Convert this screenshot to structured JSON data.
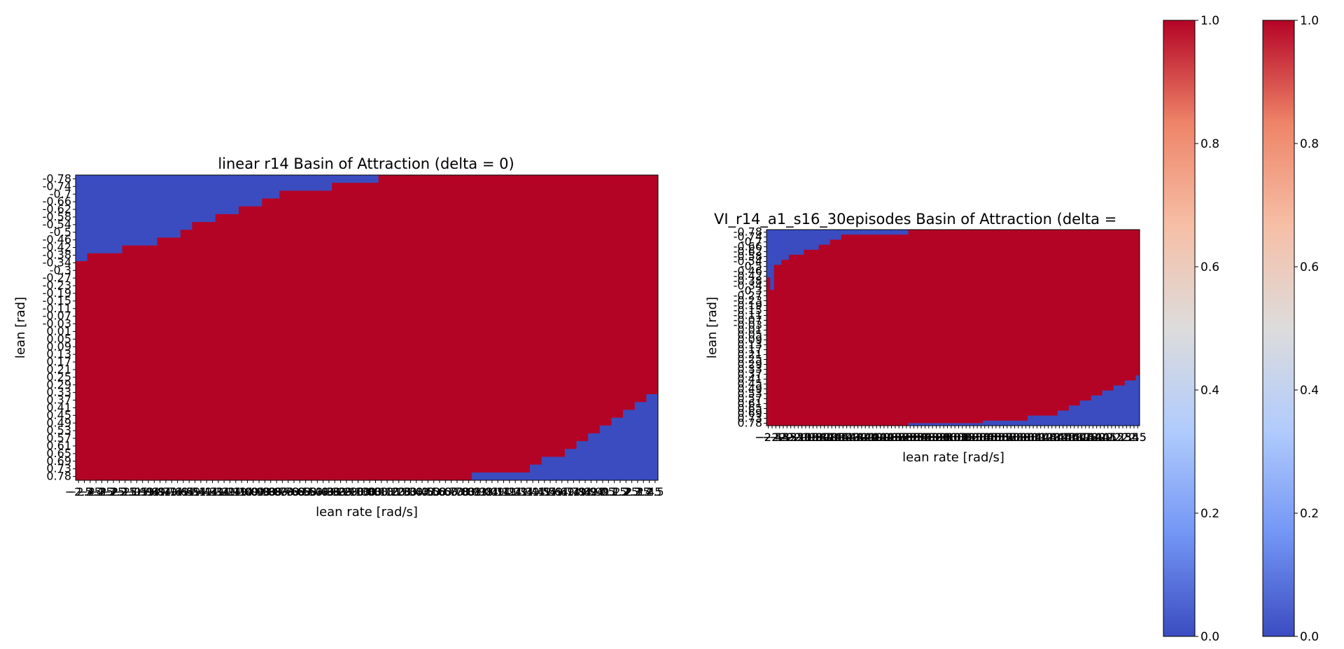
{
  "colors": {
    "stable": "#b40426",
    "unstable": "#3b4cc0"
  },
  "colormap": {
    "name": "coolwarm",
    "stops": [
      "#3b4cc0",
      "#7396f5",
      "#b0cbfc",
      "#dddcdc",
      "#f6bfa6",
      "#ee8468",
      "#b40426"
    ]
  },
  "chart_data": [
    {
      "type": "heatmap",
      "title": "linear r14 Basin of Attraction (delta = 0)",
      "xlabel": "lean rate [rad/s]",
      "ylabel": "lean [rad]",
      "xlim": [
        -2.5,
        2.5
      ],
      "ylim": [
        -0.78,
        0.78
      ],
      "y_ticks": [
        "-0.78",
        "-0.74",
        "-0.7",
        "-0.66",
        "-0.62",
        "-0.58",
        "-0.54",
        "-0.5",
        "-0.46",
        "-0.42",
        "-0.38",
        "-0.34",
        "-0.3",
        "-0.27",
        "-0.23",
        "-0.19",
        "-0.15",
        "-0.11",
        "-0.07",
        "-0.03",
        "0.01",
        "0.05",
        "0.09",
        "0.13",
        "0.17",
        "0.21",
        "0.25",
        "0.29",
        "0.33",
        "0.37",
        "0.41",
        "0.45",
        "0.49",
        "0.53",
        "0.57",
        "0.61",
        "0.65",
        "0.69",
        "0.73",
        "0.78"
      ],
      "x_tick_count": 100,
      "values_note": "1 = stabilized, 0 = not stabilized",
      "top_boundary": [
        [
          -2.5,
          -0.34
        ],
        [
          -2.4,
          -0.38
        ],
        [
          -2.1,
          -0.42
        ],
        [
          -1.8,
          -0.46
        ],
        [
          -1.6,
          -0.5
        ],
        [
          -1.5,
          -0.54
        ],
        [
          -1.3,
          -0.58
        ],
        [
          -1.1,
          -0.62
        ],
        [
          -0.9,
          -0.66
        ],
        [
          -0.75,
          -0.7
        ],
        [
          -0.3,
          -0.74
        ],
        [
          0.1,
          -0.78
        ]
      ],
      "bottom_boundary": [
        [
          -0.1,
          0.78
        ],
        [
          0.9,
          0.74
        ],
        [
          1.4,
          0.7
        ],
        [
          1.5,
          0.66
        ],
        [
          1.7,
          0.62
        ],
        [
          1.8,
          0.58
        ],
        [
          1.9,
          0.54
        ],
        [
          2.0,
          0.5
        ],
        [
          2.1,
          0.46
        ],
        [
          2.2,
          0.42
        ],
        [
          2.3,
          0.38
        ],
        [
          2.4,
          0.34
        ],
        [
          2.5,
          0.3
        ]
      ]
    },
    {
      "type": "heatmap",
      "title": "VI_r14_a1_s16_30episodes Basin of Attraction (delta =",
      "xlabel": "lean rate [rad/s]",
      "ylabel": "lean [rad]",
      "xlim": [
        -2.5,
        2.5
      ],
      "ylim": [
        -0.78,
        0.78
      ],
      "y_ticks": [
        "-0.78",
        "-0.74",
        "-0.7",
        "-0.66",
        "-0.62",
        "-0.58",
        "-0.54",
        "-0.5",
        "-0.46",
        "-0.42",
        "-0.38",
        "-0.34",
        "-0.3",
        "-0.27",
        "-0.23",
        "-0.19",
        "-0.15",
        "-0.11",
        "-0.07",
        "-0.03",
        "0.01",
        "0.05",
        "0.09",
        "0.13",
        "0.17",
        "0.21",
        "0.25",
        "0.29",
        "0.33",
        "0.37",
        "0.41",
        "0.45",
        "0.49",
        "0.53",
        "0.57",
        "0.61",
        "0.65",
        "0.69",
        "0.73",
        "0.78"
      ],
      "x_tick_count": 100,
      "values_note": "1 = stabilized, 0 = not stabilized",
      "top_boundary": [
        [
          -2.5,
          -0.4
        ],
        [
          -2.45,
          -0.3
        ],
        [
          -2.4,
          -0.5
        ],
        [
          -2.3,
          -0.54
        ],
        [
          -2.2,
          -0.58
        ],
        [
          -2.0,
          -0.62
        ],
        [
          -1.8,
          -0.66
        ],
        [
          -1.65,
          -0.7
        ],
        [
          -1.5,
          -0.74
        ],
        [
          -0.6,
          -0.78
        ],
        [
          0.4,
          -0.78
        ]
      ],
      "bottom_boundary": [
        [
          -1.1,
          0.78
        ],
        [
          -0.6,
          0.76
        ],
        [
          0.4,
          0.74
        ],
        [
          1.0,
          0.7
        ],
        [
          1.4,
          0.66
        ],
        [
          1.55,
          0.62
        ],
        [
          1.7,
          0.58
        ],
        [
          1.85,
          0.54
        ],
        [
          2.0,
          0.5
        ],
        [
          2.15,
          0.46
        ],
        [
          2.3,
          0.42
        ],
        [
          2.45,
          0.38
        ],
        [
          2.5,
          0.2
        ]
      ]
    }
  ],
  "colorbars": [
    {
      "ticks": [
        "0.0",
        "0.2",
        "0.4",
        "0.6",
        "0.8",
        "1.0"
      ],
      "range": [
        0,
        1
      ]
    },
    {
      "ticks": [
        "0.0",
        "0.2",
        "0.4",
        "0.6",
        "0.8",
        "1.0"
      ],
      "range": [
        0,
        1
      ]
    }
  ]
}
